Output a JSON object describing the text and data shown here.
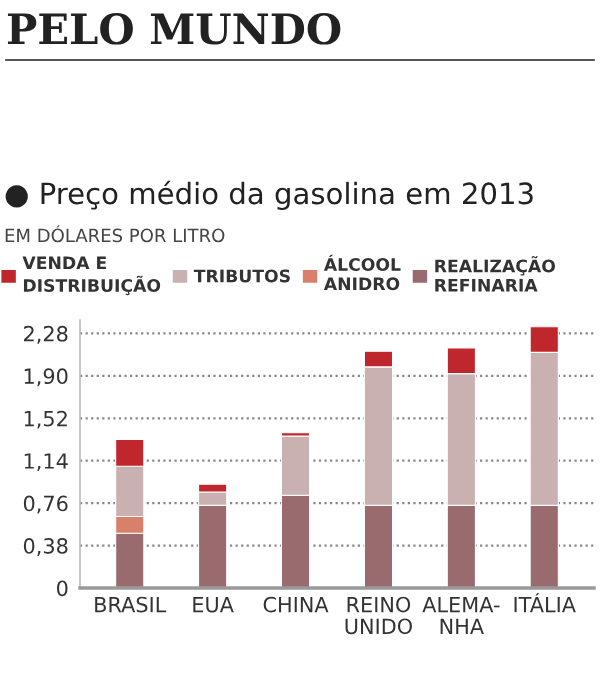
{
  "chart_data": {
    "type": "bar",
    "title": "PELO MUNDO",
    "subtitle": "● Preço médio da gasolina em 2013",
    "ylabel": "EM DÓLARES POR LITRO",
    "categories": [
      "BRASIL",
      "EUA",
      "CHINA",
      "REINO\nUNIDO",
      "ALEMA-\nNHA",
      "ITÁLIA"
    ],
    "stacked": true,
    "series": [
      {
        "name": "REALIZAÇÃO\nREFINARIA",
        "color": "#9a6b6e",
        "values": [
          0.49,
          0.74,
          0.83,
          0.74,
          0.74,
          0.74
        ]
      },
      {
        "name": "ÁLCOOL\nANIDRO",
        "color": "#d9806a",
        "values": [
          0.15,
          0,
          0,
          0,
          0,
          0
        ]
      },
      {
        "name": "TRIBUTOS",
        "color": "#c9b1b1",
        "values": [
          0.45,
          0.12,
          0.53,
          1.24,
          1.18,
          1.37
        ]
      },
      {
        "name": "VENDA E\nDISTRIBUIÇÃO",
        "color": "#c0272d",
        "values": [
          0.24,
          0.07,
          0.03,
          0.14,
          0.23,
          0.23
        ]
      }
    ],
    "ylim": [
      0,
      2.4
    ],
    "yticks": [
      0,
      {
        "value": 0.38,
        "label": "0,38"
      },
      {
        "value": 0.76,
        "label": "0,76"
      },
      {
        "value": 1.14,
        "label": "1,14"
      },
      {
        "value": 1.52,
        "label": "1,52"
      },
      {
        "value": 1.9,
        "label": "1,90"
      },
      {
        "value": 2.28,
        "label": "2,28"
      }
    ],
    "grid": "y",
    "legend": "top"
  }
}
